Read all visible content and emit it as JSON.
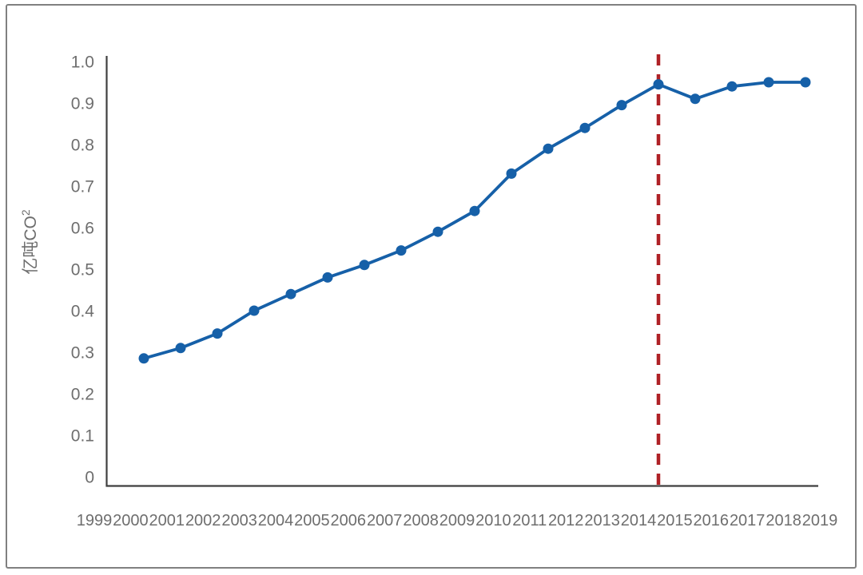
{
  "figure": {
    "background": "#ffffff",
    "border_color": "#808080"
  },
  "chart_data": {
    "type": "line",
    "title": "",
    "ylabel": "亿吨CO²",
    "ylabel_base": "亿吨CO",
    "ylabel_superscript": "2",
    "xlabel": "",
    "x_tick_labels": [
      "1999",
      "2000",
      "2001",
      "2002",
      "2003",
      "2004",
      "2005",
      "2006",
      "2007",
      "2008",
      "2009",
      "2010",
      "2011",
      "2012",
      "2013",
      "2014",
      "2015",
      "2016",
      "2017",
      "2018",
      "2019"
    ],
    "y_tick_labels": [
      "0",
      "0.1",
      "0.2",
      "0.3",
      "0.4",
      "0.5",
      "0.6",
      "0.7",
      "0.8",
      "0.9",
      "1.0"
    ],
    "ylim": [
      0,
      1.0
    ],
    "grid": "off",
    "legend": "none",
    "categories": [
      "2000",
      "2001",
      "2002",
      "2003",
      "2004",
      "2005",
      "2006",
      "2007",
      "2008",
      "2009",
      "2010",
      "2011",
      "2012",
      "2013",
      "2014",
      "2015",
      "2016",
      "2017",
      "2018"
    ],
    "series": [
      {
        "color": "#1660a8",
        "values": [
          0.285,
          0.31,
          0.345,
          0.4,
          0.44,
          0.48,
          0.51,
          0.545,
          0.59,
          0.64,
          0.73,
          0.79,
          0.84,
          0.895,
          0.945,
          0.91,
          0.94,
          0.95,
          0.95
        ]
      }
    ],
    "annotations": [
      {
        "type": "vertical_dashed_line",
        "color": "#af2126",
        "at_category": "2014",
        "point_index": 14,
        "between_tick_labels": [
          "2014",
          "2015"
        ]
      }
    ],
    "layout_hints": {
      "points_plotted_between_year_ticks": true,
      "axis_color": "#3f3f3f",
      "tick_label_color": "#6e6e6e",
      "marker": "circle"
    }
  }
}
